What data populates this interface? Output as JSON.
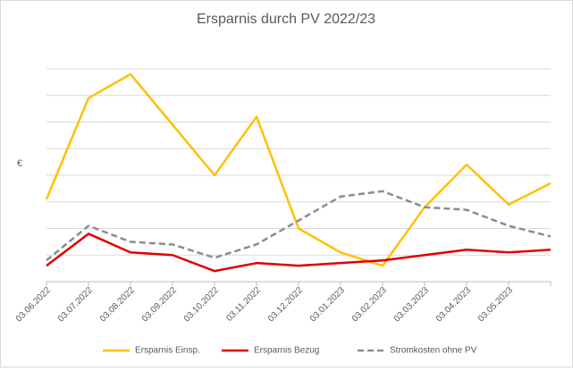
{
  "chart_data": {
    "type": "line",
    "title": "Ersparnis durch PV 2022/23",
    "y_label": "€",
    "categories": [
      "03.06.2022",
      "03.07.2022",
      "03.08.2022",
      "03.09.2022",
      "03.10.2022",
      "03.11.2022",
      "03.12.2022",
      "03.01.2023",
      "03.02.2023",
      "03.03.2023",
      "03.04.2023",
      "03.05.2023",
      null
    ],
    "series": [
      {
        "name": "Ersparnis Einsp.",
        "color": "#ffc000",
        "values": [
          3.1,
          6.9,
          7.8,
          5.9,
          4.0,
          6.2,
          2.0,
          1.1,
          0.6,
          2.8,
          4.4,
          2.9,
          3.7
        ]
      },
      {
        "name": "Ersparnis Bezug",
        "color": "#e00000",
        "values": [
          0.6,
          1.8,
          1.1,
          1.0,
          0.4,
          0.7,
          0.6,
          0.7,
          0.8,
          1.0,
          1.2,
          1.1,
          1.2
        ]
      },
      {
        "name": "Stromkosten ohne PV",
        "color": "#8c8c8c",
        "dashed": true,
        "values": [
          0.8,
          2.1,
          1.5,
          1.4,
          0.9,
          1.4,
          2.3,
          3.2,
          3.4,
          2.8,
          2.7,
          2.1,
          1.7
        ]
      }
    ],
    "ylim": [
      0,
      8
    ],
    "grid_lines": [
      1,
      2,
      3,
      4,
      5,
      6,
      7,
      8
    ],
    "grid": true
  }
}
